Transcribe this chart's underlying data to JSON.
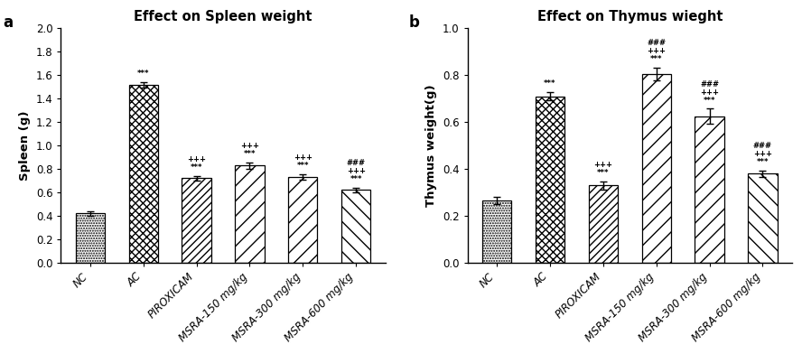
{
  "spleen": {
    "title": "Effect on Spleen weight",
    "ylabel": "Spleen (g)",
    "categories": [
      "NC",
      "AC",
      "PIROXICAM",
      "MSRA-150 mg/kg",
      "MSRA-300 mg/kg",
      "MSRA-600 mg/kg"
    ],
    "values": [
      0.42,
      1.52,
      0.72,
      0.83,
      0.73,
      0.62
    ],
    "errors": [
      0.022,
      0.022,
      0.022,
      0.028,
      0.025,
      0.022
    ],
    "ylim": [
      0.0,
      2.0
    ],
    "yticks": [
      0.0,
      0.2,
      0.4,
      0.6,
      0.8,
      1.0,
      1.2,
      1.4,
      1.6,
      1.8,
      2.0
    ],
    "annotations": [
      {
        "x": 0,
        "has_star": false,
        "has_plus": false,
        "has_hash": false
      },
      {
        "x": 1,
        "has_star": true,
        "has_plus": false,
        "has_hash": false
      },
      {
        "x": 2,
        "has_star": true,
        "has_plus": true,
        "has_hash": false
      },
      {
        "x": 3,
        "has_star": true,
        "has_plus": true,
        "has_hash": false
      },
      {
        "x": 4,
        "has_star": true,
        "has_plus": true,
        "has_hash": false
      },
      {
        "x": 5,
        "has_star": true,
        "has_plus": true,
        "has_hash": true
      }
    ],
    "panel_label": "a"
  },
  "thymus": {
    "title": "Effect on Thymus wieght",
    "ylabel": "Thymus weight(g)",
    "categories": [
      "NC",
      "AC",
      "PIROXICAM",
      "MSRA-150 mg/kg",
      "MSRA-300 mg/kg",
      "MSRA-600 mg/kg"
    ],
    "values": [
      0.265,
      0.71,
      0.33,
      0.805,
      0.625,
      0.38
    ],
    "errors": [
      0.016,
      0.018,
      0.018,
      0.028,
      0.032,
      0.014
    ],
    "ylim": [
      0.0,
      1.0
    ],
    "yticks": [
      0.0,
      0.2,
      0.4,
      0.6,
      0.8,
      1.0
    ],
    "annotations": [
      {
        "x": 0,
        "has_star": false,
        "has_plus": false,
        "has_hash": false
      },
      {
        "x": 1,
        "has_star": true,
        "has_plus": false,
        "has_hash": false
      },
      {
        "x": 2,
        "has_star": true,
        "has_plus": true,
        "has_hash": false
      },
      {
        "x": 3,
        "has_star": true,
        "has_plus": true,
        "has_hash": true
      },
      {
        "x": 4,
        "has_star": true,
        "has_plus": true,
        "has_hash": true
      },
      {
        "x": 5,
        "has_star": true,
        "has_plus": true,
        "has_hash": true
      }
    ],
    "panel_label": "b"
  }
}
